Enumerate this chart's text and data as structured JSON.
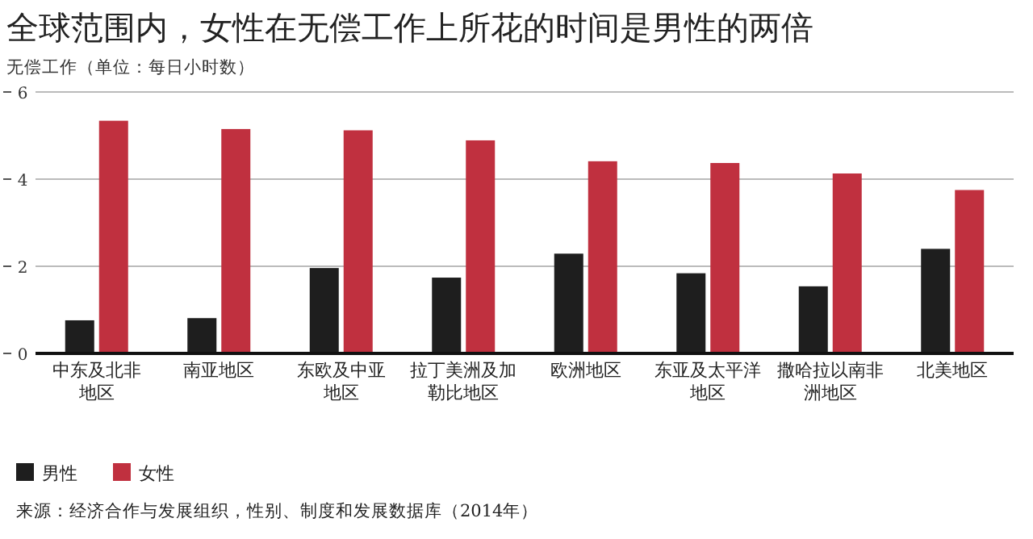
{
  "chart_data": {
    "type": "bar",
    "title": "全球范围内，女性在无偿工作上所花的时间是男性的两倍",
    "ylabel": "无偿工作（单位：每日小时数）",
    "categories": [
      "中东及北非地区",
      "南亚地区",
      "东欧及中亚地区",
      "拉丁美洲及加勒比地区",
      "欧洲地区",
      "东亚及太平洋地区",
      "撒哈拉以南非洲地区",
      "北美地区"
    ],
    "series": [
      {
        "name": "男性",
        "color": "#1e1e1e",
        "values": [
          0.76,
          0.81,
          1.96,
          1.74,
          2.29,
          1.84,
          1.54,
          2.4
        ]
      },
      {
        "name": "女性",
        "color": "#c0303f",
        "values": [
          5.34,
          5.15,
          5.12,
          4.89,
          4.41,
          4.37,
          4.13,
          3.75
        ]
      }
    ],
    "ylim": [
      0,
      6
    ],
    "yticks": [
      0,
      2,
      4,
      6
    ],
    "grid": "y",
    "legend": "bottom",
    "annotations": [
      "来源：经济合作与发展组织，性别、制度和发展数据库（2014年）"
    ]
  }
}
